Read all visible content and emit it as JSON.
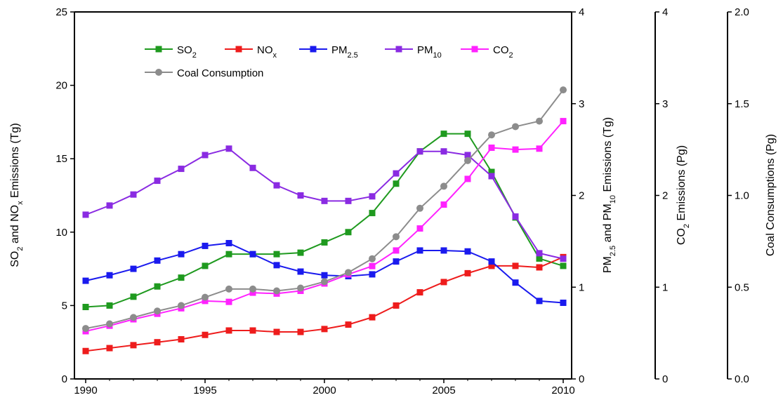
{
  "chart_data": {
    "type": "line",
    "x": [
      1990,
      1991,
      1992,
      1993,
      1994,
      1995,
      1996,
      1997,
      1998,
      1999,
      2000,
      2001,
      2002,
      2003,
      2004,
      2005,
      2006,
      2007,
      2008,
      2009,
      2010
    ],
    "x_ticks": [
      "1990",
      "1995",
      "2000",
      "2005",
      "2010"
    ],
    "xlim": [
      1990,
      2010
    ],
    "axes": {
      "left": {
        "label_parts": [
          "SO",
          "2",
          " and NO",
          "x",
          " Emissions (Tg)"
        ],
        "ylim": [
          0,
          25
        ],
        "ticks": [
          "0",
          "5",
          "10",
          "15",
          "20",
          "25"
        ]
      },
      "right1": {
        "label_parts": [
          "PM",
          "2.5",
          " and  PM",
          "10",
          " Emissions (Tg)"
        ],
        "ylim": [
          0,
          4
        ],
        "ticks": [
          "0",
          "1",
          "2",
          "3",
          "4"
        ]
      },
      "right2": {
        "label_parts": [
          "CO",
          "2",
          " Emissions (Pg)"
        ],
        "ylim": [
          0,
          4
        ],
        "ticks": [
          "0",
          "1",
          "2",
          "3",
          "4"
        ]
      },
      "right3": {
        "label_parts": [
          "Coal Consumptions (Pg)"
        ],
        "ylim": [
          0,
          2
        ],
        "ticks": [
          "0.0",
          "0.5",
          "1.0",
          "1.5",
          "2.0"
        ]
      }
    },
    "series": [
      {
        "name_parts": [
          "SO",
          "2"
        ],
        "color": "#1f9a1f",
        "marker": "square",
        "axis": "left",
        "values": [
          4.9,
          5.0,
          5.6,
          6.3,
          6.9,
          7.7,
          8.5,
          8.5,
          8.5,
          8.6,
          9.3,
          10.0,
          11.3,
          13.3,
          15.5,
          16.7,
          16.7,
          14.1,
          11.0,
          8.2,
          7.7
        ]
      },
      {
        "name_parts": [
          "NO",
          "x"
        ],
        "color": "#ee1c1c",
        "marker": "square",
        "axis": "left",
        "values": [
          1.9,
          2.1,
          2.3,
          2.5,
          2.7,
          3.0,
          3.3,
          3.3,
          3.2,
          3.2,
          3.4,
          3.7,
          4.2,
          5.0,
          5.9,
          6.6,
          7.2,
          7.7,
          7.7,
          7.6,
          8.3
        ]
      },
      {
        "name_parts": [
          "PM",
          "2.5"
        ],
        "color": "#1a1aee",
        "marker": "square",
        "axis": "right1",
        "values": [
          1.07,
          1.13,
          1.2,
          1.29,
          1.36,
          1.45,
          1.48,
          1.36,
          1.24,
          1.17,
          1.13,
          1.12,
          1.14,
          1.28,
          1.4,
          1.4,
          1.39,
          1.28,
          1.05,
          0.85,
          0.83
        ]
      },
      {
        "name_parts": [
          "PM",
          "10"
        ],
        "color": "#8a2be2",
        "marker": "square",
        "axis": "right1",
        "values": [
          1.79,
          1.89,
          2.01,
          2.16,
          2.29,
          2.44,
          2.51,
          2.3,
          2.11,
          2.0,
          1.94,
          1.94,
          1.99,
          2.24,
          2.48,
          2.48,
          2.44,
          2.21,
          1.77,
          1.37,
          1.31
        ]
      },
      {
        "name_parts": [
          "CO",
          "2"
        ],
        "color": "#ff22ff",
        "marker": "square",
        "axis": "right2",
        "values": [
          0.52,
          0.58,
          0.65,
          0.71,
          0.77,
          0.85,
          0.84,
          0.94,
          0.93,
          0.96,
          1.04,
          1.14,
          1.23,
          1.4,
          1.64,
          1.9,
          2.18,
          2.52,
          2.5,
          2.51,
          2.81
        ]
      },
      {
        "name_parts": [
          "Coal Consumption"
        ],
        "color": "#8c8c8c",
        "marker": "circle",
        "axis": "right3",
        "values": [
          0.275,
          0.3,
          0.335,
          0.37,
          0.4,
          0.445,
          0.49,
          0.49,
          0.48,
          0.495,
          0.53,
          0.58,
          0.655,
          0.775,
          0.93,
          1.05,
          1.19,
          1.33,
          1.375,
          1.405,
          1.575
        ]
      }
    ],
    "legend_position": "top-left",
    "grid": false
  }
}
